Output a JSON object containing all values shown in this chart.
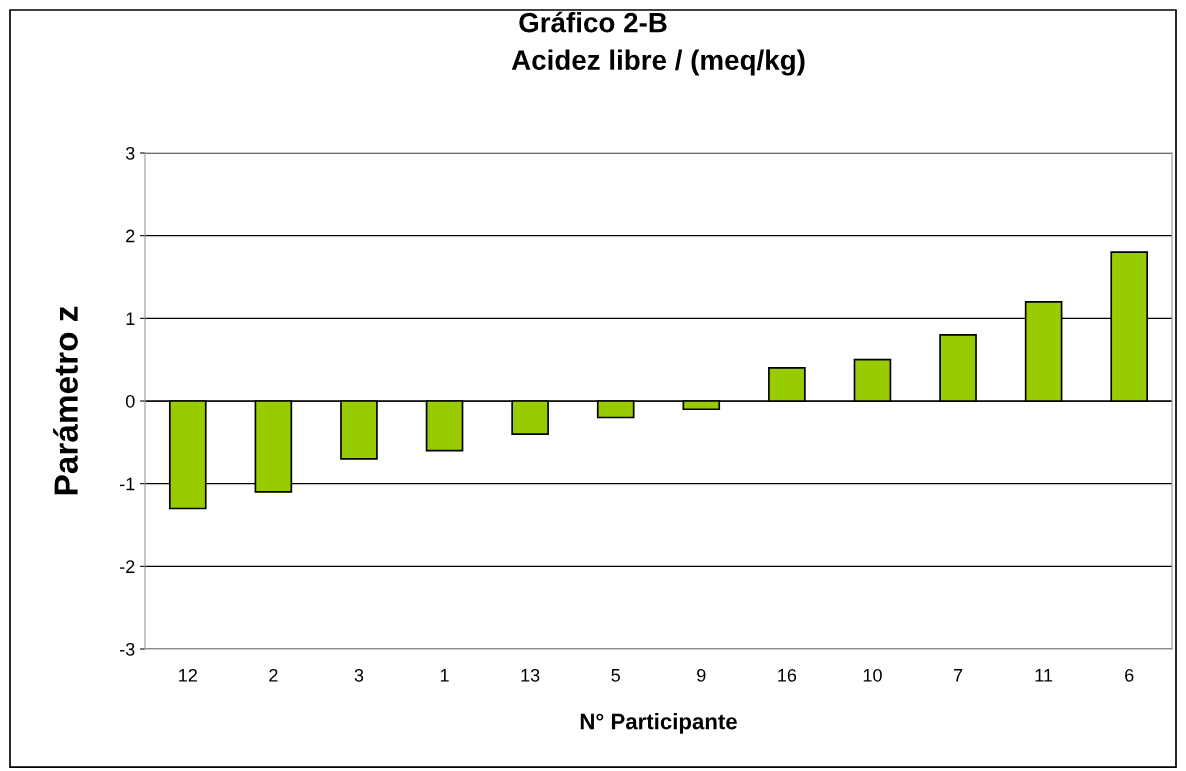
{
  "chart_data": {
    "type": "bar",
    "title": "Acidez libre / (meq/kg)",
    "xlabel": "N° Participante",
    "ylabel": "Parámetro z",
    "annotations": [
      "Gráfico 2-B"
    ],
    "categories": [
      "12",
      "2",
      "3",
      "1",
      "13",
      "5",
      "9",
      "16",
      "10",
      "7",
      "11",
      "6"
    ],
    "values": [
      -1.3,
      -1.1,
      -0.7,
      -0.6,
      -0.4,
      -0.2,
      -0.1,
      0.4,
      0.5,
      0.8,
      1.2,
      1.8
    ],
    "color": "#99cc00",
    "ylim": [
      -3,
      3
    ],
    "yticks": [
      -3,
      -2,
      -1,
      0,
      1,
      2,
      3
    ],
    "grid": "y",
    "legend": false
  }
}
